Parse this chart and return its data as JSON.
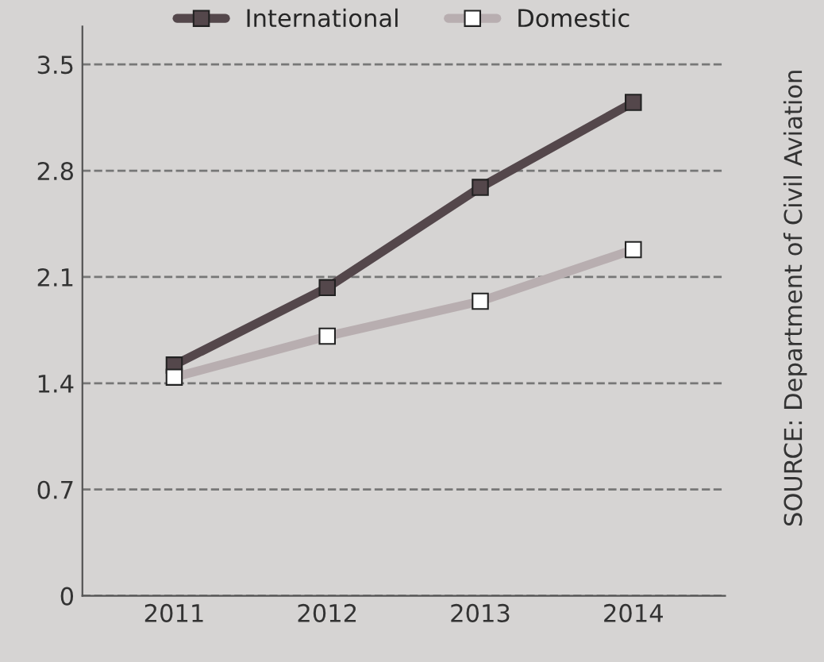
{
  "chart_data": {
    "type": "line",
    "categories": [
      "2011",
      "2012",
      "2013",
      "2014"
    ],
    "series": [
      {
        "name": "International",
        "color": "#54474b",
        "values": [
          1.52,
          2.03,
          2.69,
          3.25
        ]
      },
      {
        "name": "Domestic",
        "color": "#b8aeb0",
        "values": [
          1.44,
          1.71,
          1.94,
          2.28
        ]
      }
    ],
    "ylim": [
      0,
      3.75
    ],
    "yticks": [
      0,
      0.7,
      1.4,
      2.1,
      2.8,
      3.5
    ],
    "grid": "y",
    "legend": "top",
    "marker": "square",
    "line_style": "solid",
    "annotations": [
      "SOURCE: Department of Civil Aviation"
    ]
  }
}
